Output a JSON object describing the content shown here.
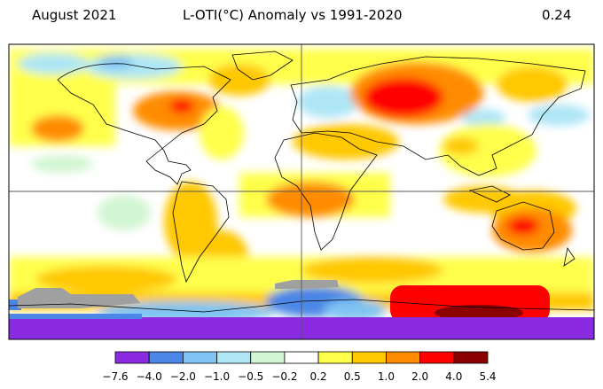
{
  "header": {
    "date": "August 2021",
    "title": "L-OTI(°C) Anomaly vs 1991-2020",
    "global_mean": "0.24"
  },
  "map": {
    "projection": "equirectangular",
    "lon_range": [
      -180,
      180
    ],
    "lat_range": [
      -90,
      90
    ],
    "gridlines": "equator and prime meridian"
  },
  "colorbar": {
    "ticks": [
      "−7.6",
      "−4.0",
      "−2.0",
      "−1.0",
      "−0.5",
      "−0.2",
      "0.2",
      "0.5",
      "1.0",
      "2.0",
      "4.0",
      "5.4"
    ],
    "colors": [
      "#8a2be2",
      "#4c86e6",
      "#7fc4f2",
      "#aee6f6",
      "#d2f5d2",
      "#ffffff",
      "#ffff4c",
      "#ffc800",
      "#ff8c00",
      "#ff0000",
      "#8b0000"
    ]
  }
}
